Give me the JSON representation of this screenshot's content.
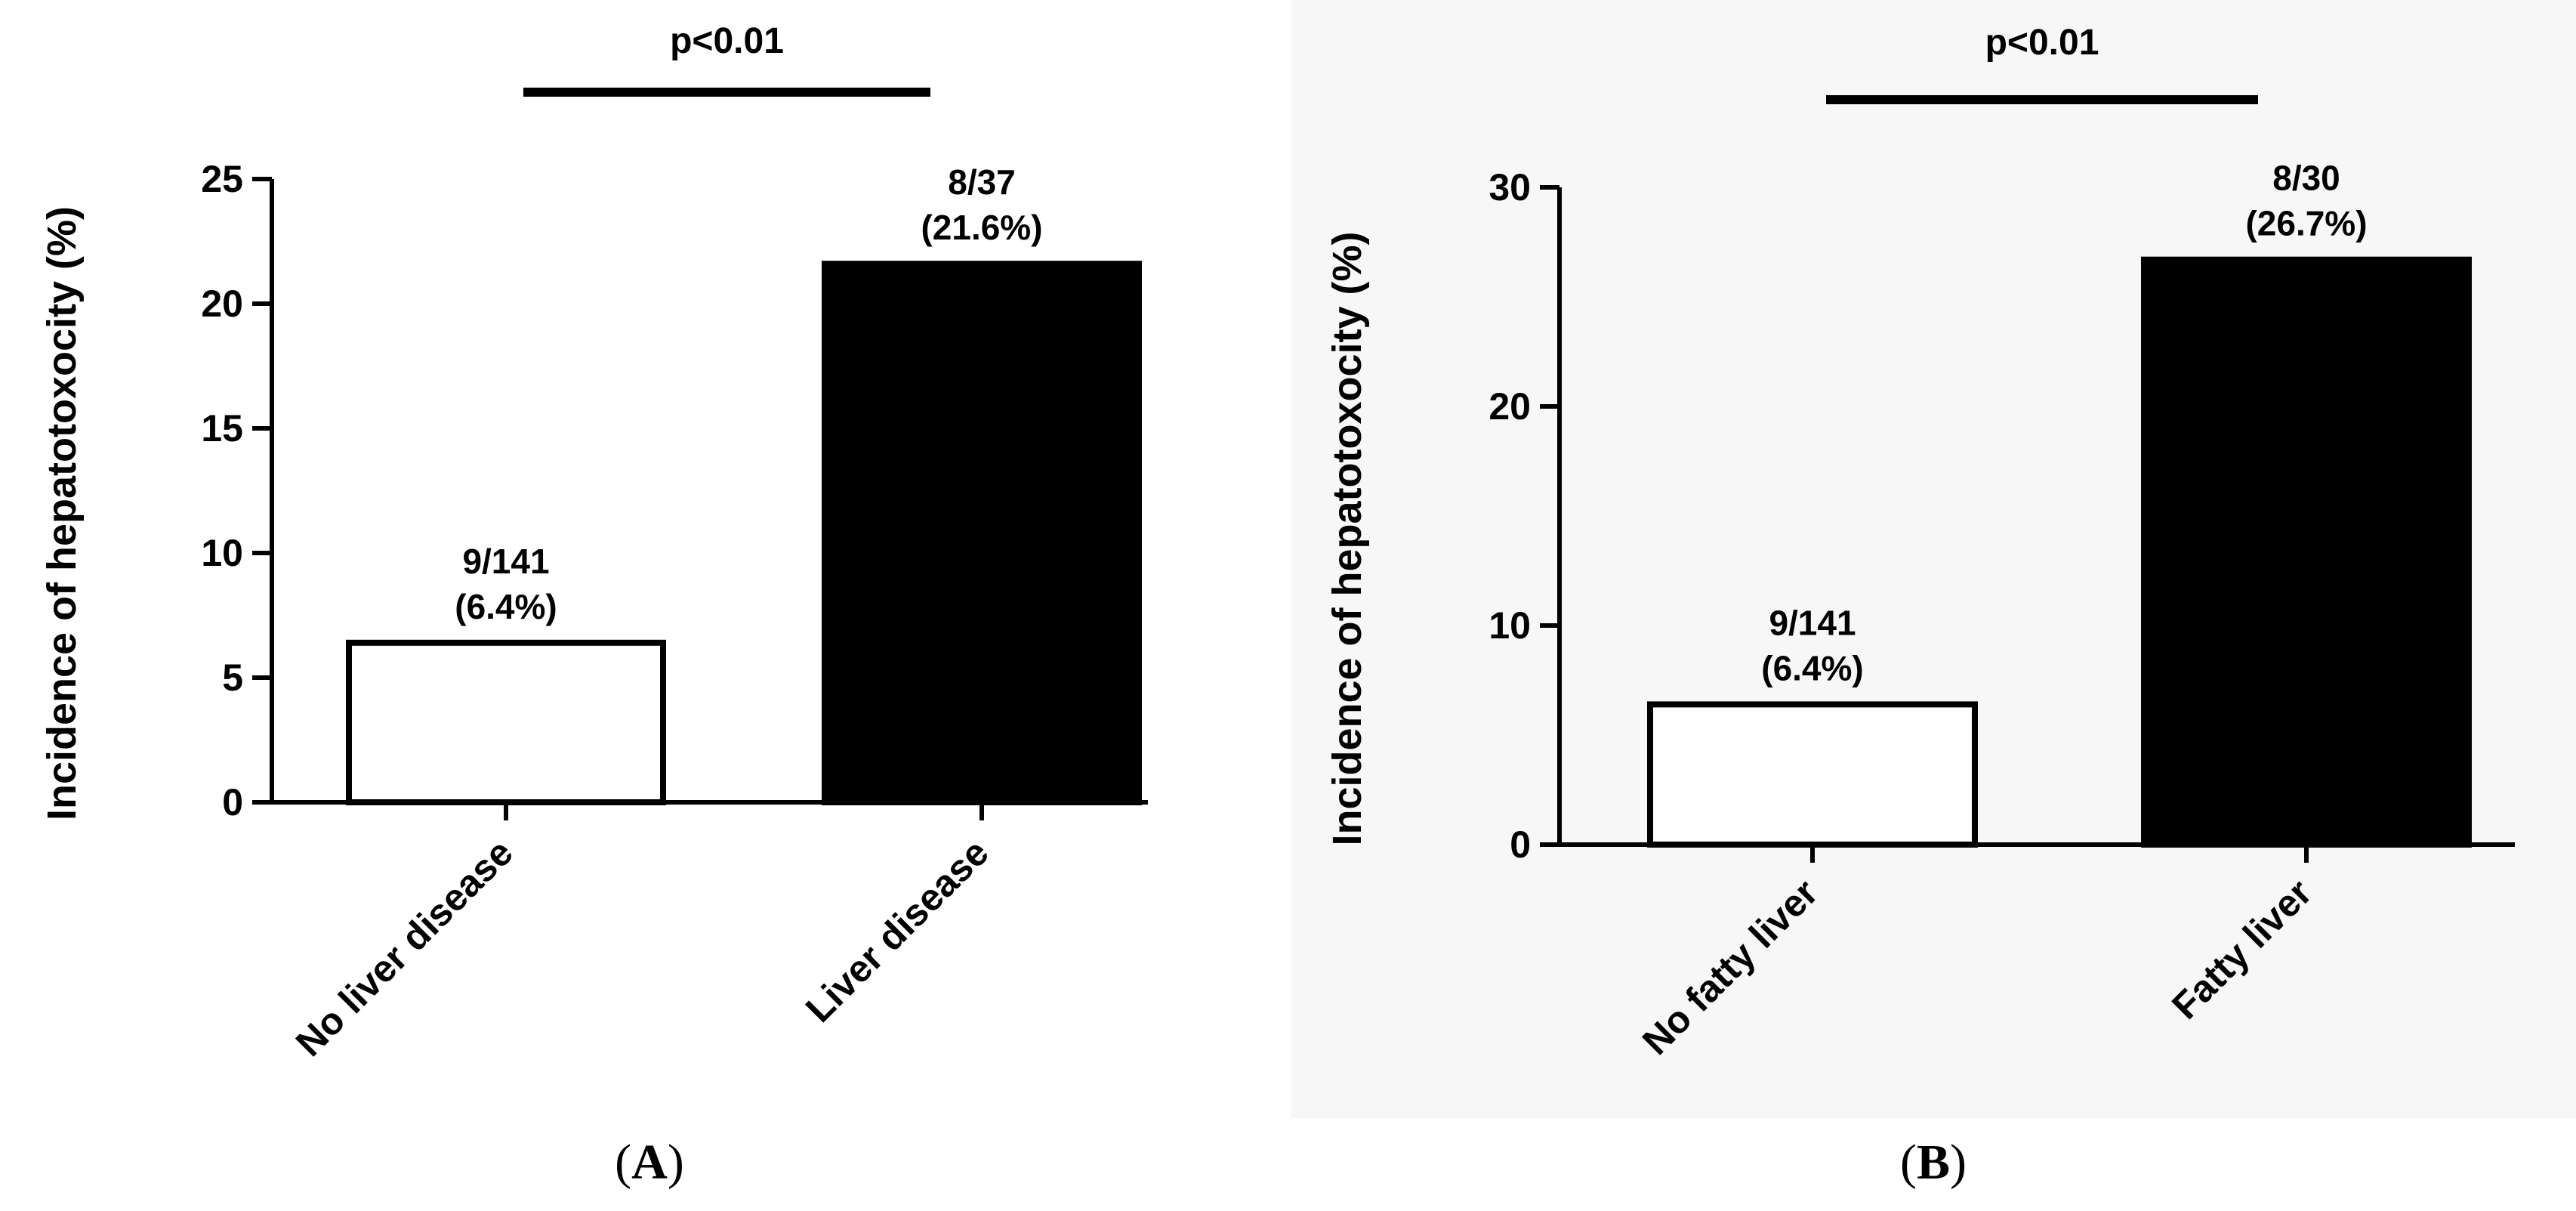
{
  "chart_data": [
    {
      "type": "bar",
      "panel": "A",
      "ylabel": "Incidence of hepatotoxocity (%)",
      "ylim": [
        0,
        25
      ],
      "yticks": [
        0,
        5,
        10,
        15,
        20,
        25
      ],
      "categories": [
        "No liver disease",
        "Liver disease"
      ],
      "values": [
        6.4,
        21.6
      ],
      "bar_fill": [
        "#ffffff",
        "#000000"
      ],
      "data_labels": [
        {
          "fraction": "9/141",
          "percent": "(6.4%)"
        },
        {
          "fraction": "8/37",
          "percent": "(21.6%)"
        }
      ],
      "significance": "p<0.01"
    },
    {
      "type": "bar",
      "panel": "B",
      "ylabel": "Incidence of hepatotoxocity (%)",
      "ylim": [
        0,
        30
      ],
      "yticks": [
        0,
        10,
        20,
        30
      ],
      "categories": [
        "No fatty liver",
        "Fatty liver"
      ],
      "values": [
        6.4,
        26.7
      ],
      "bar_fill": [
        "#ffffff",
        "#000000"
      ],
      "data_labels": [
        {
          "fraction": "9/141",
          "percent": "(6.4%)"
        },
        {
          "fraction": "8/30",
          "percent": "(26.7%)"
        }
      ],
      "significance": "p<0.01"
    }
  ],
  "panel_letters": [
    "A",
    "B"
  ]
}
